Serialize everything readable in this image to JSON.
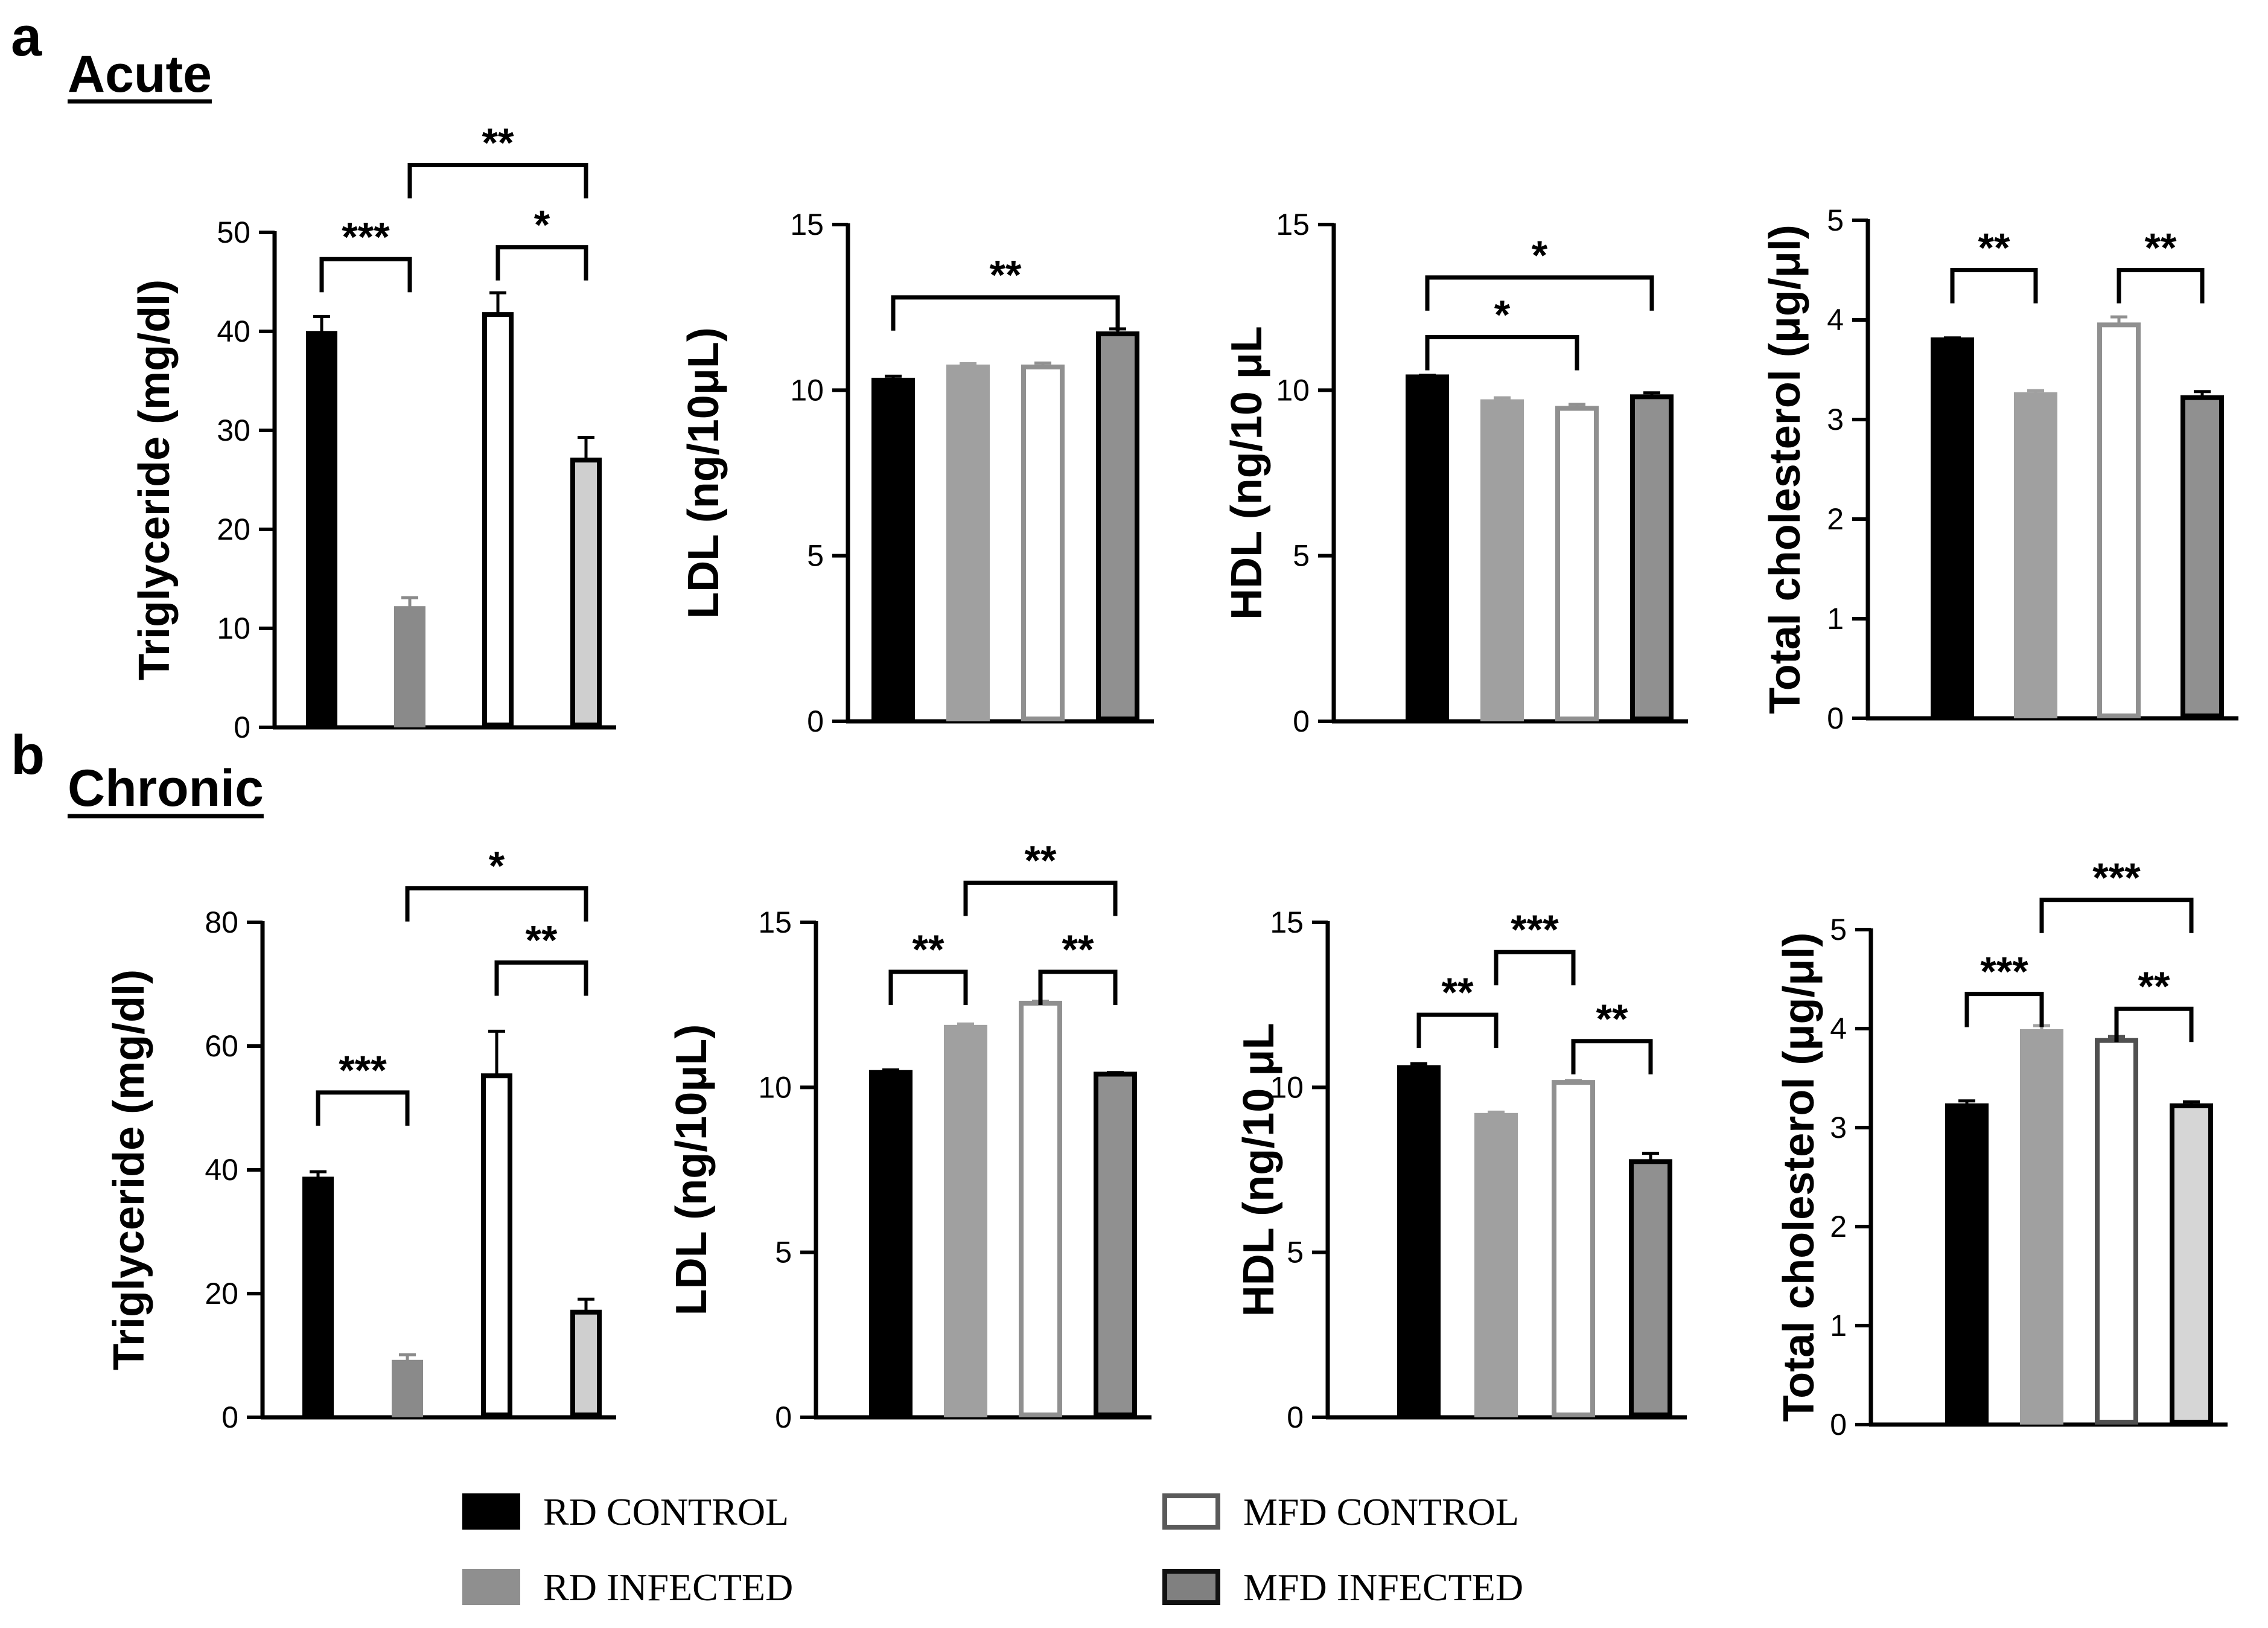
{
  "panels": [
    {
      "letter": "a",
      "title": "Acute"
    },
    {
      "letter": "b",
      "title": "Chronic"
    }
  ],
  "legend": [
    {
      "label": "RD CONTROL",
      "fill": "#000000",
      "stroke": "#000000"
    },
    {
      "label": "MFD CONTROL",
      "fill": "#ffffff",
      "stroke": "#5a5a5a"
    },
    {
      "label": "RD INFECTED",
      "fill": "#8f8f8f",
      "stroke": "#8f8f8f"
    },
    {
      "label": "MFD INFECTED",
      "fill": "#808080",
      "stroke": "#111111"
    }
  ],
  "colors": {
    "rd_control": "#000000",
    "rd_infected": "#8f8f8f",
    "mfd_control": "#ffffff",
    "mfd_infected": "#808080"
  },
  "chart_data": [
    {
      "type": "bar",
      "panel": "a",
      "ylabel": "Triglyceride (mg/dl)",
      "ylim": [
        0,
        50
      ],
      "yticks": [
        "0",
        "10",
        "20",
        "30",
        "40",
        "50"
      ],
      "values": [
        39.8,
        12,
        41.7,
        27
      ],
      "errors": [
        1.7,
        1.1,
        2.2,
        2.3
      ],
      "fills": [
        "#000000",
        "#8a8a8a",
        "#ffffff",
        "#cfcfcf"
      ],
      "strokes": [
        "#000000",
        "#8a8a8a",
        "#000000",
        "#000000"
      ],
      "brackets": [
        {
          "from": 0,
          "to": 1,
          "label": "***",
          "y": 47.3
        },
        {
          "from": 1,
          "to": 3,
          "label": "**",
          "y": 56.8
        },
        {
          "from": 2,
          "to": 3,
          "label": "*",
          "y": 48.5
        }
      ]
    },
    {
      "type": "bar",
      "panel": "a",
      "ylabel": "LDL (ng/10μL)",
      "ylim": [
        0,
        15
      ],
      "yticks": [
        "0",
        "5",
        "10",
        "15"
      ],
      "values": [
        10.3,
        10.7,
        10.7,
        11.7
      ],
      "errors": [
        0.12,
        0.1,
        0.12,
        0.15
      ],
      "fills": [
        "#000000",
        "#a0a0a0",
        "#ffffff",
        "#909090"
      ],
      "strokes": [
        "#000000",
        "#a0a0a0",
        "#909090",
        "#000000"
      ],
      "brackets": [
        {
          "from": 0,
          "to": 3,
          "label": "**",
          "y": 12.8
        }
      ]
    },
    {
      "type": "bar",
      "panel": "a",
      "ylabel": "HDL (ng/10 μL",
      "ylim": [
        0,
        15
      ],
      "yticks": [
        "0",
        "5",
        "10",
        "15"
      ],
      "values": [
        10.4,
        9.65,
        9.45,
        9.8
      ],
      "errors": [
        0.05,
        0.12,
        0.12,
        0.12
      ],
      "fills": [
        "#000000",
        "#a0a0a0",
        "#ffffff",
        "#909090"
      ],
      "strokes": [
        "#000000",
        "#a0a0a0",
        "#909090",
        "#000000"
      ],
      "brackets": [
        {
          "from": 0,
          "to": 3,
          "label": "*",
          "y": 13.4
        },
        {
          "from": 0,
          "to": 2,
          "label": "*",
          "y": 11.6
        }
      ]
    },
    {
      "type": "bar",
      "panel": "a",
      "ylabel": "Total cholesterol (μg/μl)",
      "ylim": [
        0,
        5
      ],
      "yticks": [
        "0",
        "1",
        "2",
        "3",
        "4",
        "5"
      ],
      "values": [
        3.8,
        3.25,
        3.95,
        3.22
      ],
      "errors": [
        0.02,
        0.04,
        0.08,
        0.06
      ],
      "fills": [
        "#000000",
        "#a0a0a0",
        "#ffffff",
        "#909090"
      ],
      "strokes": [
        "#000000",
        "#a0a0a0",
        "#909090",
        "#000000"
      ],
      "brackets": [
        {
          "from": 0,
          "to": 1,
          "label": "**",
          "y": 4.5
        },
        {
          "from": 2,
          "to": 3,
          "label": "**",
          "y": 4.5
        }
      ]
    },
    {
      "type": "bar",
      "panel": "b",
      "ylabel": "Triglyceride (mg/dl)",
      "ylim": [
        0,
        80
      ],
      "yticks": [
        "0",
        "20",
        "40",
        "60",
        "80"
      ],
      "values": [
        38.5,
        8.9,
        55.2,
        17
      ],
      "errors": [
        1.2,
        1.2,
        7.2,
        2.1
      ],
      "fills": [
        "#000000",
        "#8a8a8a",
        "#ffffff",
        "#cfcfcf"
      ],
      "strokes": [
        "#000000",
        "#8a8a8a",
        "#000000",
        "#000000"
      ],
      "brackets": [
        {
          "from": 0,
          "to": 1,
          "label": "***",
          "y": 52.5
        },
        {
          "from": 1,
          "to": 3,
          "label": "*",
          "y": 85.5
        },
        {
          "from": 2,
          "to": 3,
          "label": "**",
          "y": 73.5
        }
      ]
    },
    {
      "type": "bar",
      "panel": "b",
      "ylabel": "LDL (ng/10μL)",
      "ylim": [
        0,
        15
      ],
      "yticks": [
        "0",
        "5",
        "10",
        "15"
      ],
      "values": [
        10.45,
        11.82,
        12.55,
        10.4
      ],
      "errors": [
        0.08,
        0.1,
        0.06,
        0.05
      ],
      "fills": [
        "#000000",
        "#a0a0a0",
        "#ffffff",
        "#909090"
      ],
      "strokes": [
        "#000000",
        "#a0a0a0",
        "#909090",
        "#000000"
      ],
      "brackets": [
        {
          "from": 0,
          "to": 1,
          "label": "**",
          "y": 13.5
        },
        {
          "from": 1,
          "to": 3,
          "label": "**",
          "y": 16.2
        },
        {
          "from": 2,
          "to": 3,
          "label": "**",
          "y": 13.5
        }
      ]
    },
    {
      "type": "bar",
      "panel": "b",
      "ylabel": "HDL (ng/10 μL",
      "ylim": [
        0,
        15
      ],
      "yticks": [
        "0",
        "5",
        "10",
        "15"
      ],
      "values": [
        10.6,
        9.15,
        10.15,
        7.75
      ],
      "errors": [
        0.12,
        0.1,
        0.05,
        0.25
      ],
      "fills": [
        "#000000",
        "#a0a0a0",
        "#ffffff",
        "#909090"
      ],
      "strokes": [
        "#000000",
        "#a0a0a0",
        "#909090",
        "#000000"
      ],
      "brackets": [
        {
          "from": 0,
          "to": 1,
          "label": "**",
          "y": 12.2
        },
        {
          "from": 1,
          "to": 2,
          "label": "***",
          "y": 14.1
        },
        {
          "from": 2,
          "to": 3,
          "label": "**",
          "y": 11.4
        }
      ]
    },
    {
      "type": "bar",
      "panel": "b",
      "ylabel": "Total cholesterol (μg/μl)",
      "ylim": [
        0,
        5
      ],
      "yticks": [
        "0",
        "1",
        "2",
        "3",
        "4",
        "5"
      ],
      "values": [
        3.22,
        3.97,
        3.88,
        3.22
      ],
      "errors": [
        0.05,
        0.06,
        0.04,
        0.04
      ],
      "fills": [
        "#000000",
        "#a0a0a0",
        "#ffffff",
        "#d6d6d6"
      ],
      "strokes": [
        "#000000",
        "#a0a0a0",
        "#505050",
        "#000000"
      ],
      "brackets": [
        {
          "from": 0,
          "to": 1,
          "label": "***",
          "y": 4.35
        },
        {
          "from": 1,
          "to": 3,
          "label": "***",
          "y": 5.3
        },
        {
          "from": 2,
          "to": 3,
          "label": "**",
          "y": 4.2
        }
      ]
    }
  ]
}
